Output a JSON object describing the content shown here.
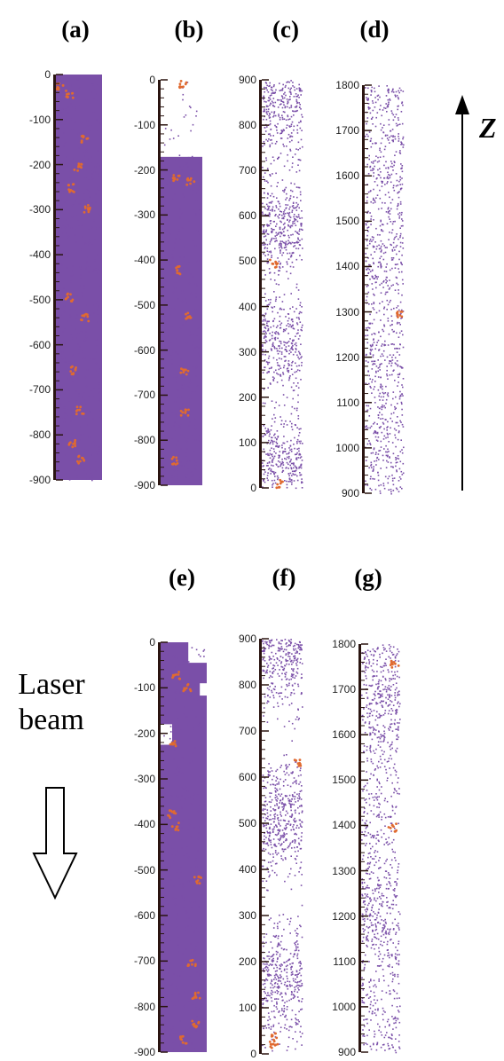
{
  "panels": [
    {
      "label": "(a)",
      "ticks": [
        "0",
        "-100",
        "-200",
        "-300",
        "-400",
        "-500",
        "-600",
        "-700",
        "-800",
        "-900"
      ],
      "density": "full",
      "clusters": [
        [
          0.03,
          0.08
        ],
        [
          0.05,
          0.3
        ],
        [
          0.16,
          0.65
        ],
        [
          0.23,
          0.5
        ],
        [
          0.28,
          0.35
        ],
        [
          0.33,
          0.7
        ],
        [
          0.55,
          0.3
        ],
        [
          0.6,
          0.65
        ],
        [
          0.73,
          0.4
        ],
        [
          0.83,
          0.55
        ],
        [
          0.91,
          0.35
        ],
        [
          0.95,
          0.55
        ]
      ]
    },
    {
      "label": "(b)",
      "ticks": [
        "0",
        "-100",
        "-200",
        "-300",
        "-400",
        "-500",
        "-600",
        "-700",
        "-800",
        "-900"
      ],
      "density": "gapTop",
      "clusters": [
        [
          0.01,
          0.55
        ],
        [
          0.24,
          0.4
        ],
        [
          0.25,
          0.75
        ],
        [
          0.47,
          0.45
        ],
        [
          0.58,
          0.7
        ],
        [
          0.72,
          0.6
        ],
        [
          0.82,
          0.6
        ],
        [
          0.94,
          0.35
        ]
      ]
    },
    {
      "label": "(c)",
      "ticks": [
        "900",
        "800",
        "700",
        "600",
        "500",
        "400",
        "300",
        "200",
        "100",
        "0"
      ],
      "density": "patchy",
      "clusters": [
        [
          0.45,
          0.3
        ],
        [
          0.99,
          0.45
        ]
      ]
    },
    {
      "label": "(d)",
      "ticks": [
        "1800",
        "1700",
        "1600",
        "1500",
        "1400",
        "1300",
        "1200",
        "1100",
        "1000",
        "900"
      ],
      "density": "sparse",
      "clusters": [
        [
          0.56,
          0.95
        ]
      ]
    },
    {
      "label": "(e)",
      "ticks": [
        "0",
        "-100",
        "-200",
        "-300",
        "-400",
        "-500",
        "-600",
        "-700",
        "-800",
        "-900"
      ],
      "density": "gapTop2",
      "clusters": [
        [
          0.08,
          0.35
        ],
        [
          0.11,
          0.6
        ],
        [
          0.25,
          0.3
        ],
        [
          0.42,
          0.25
        ],
        [
          0.45,
          0.35
        ],
        [
          0.58,
          0.85
        ],
        [
          0.78,
          0.7
        ],
        [
          0.86,
          0.8
        ],
        [
          0.93,
          0.8
        ],
        [
          0.97,
          0.5
        ]
      ]
    },
    {
      "label": "(f)",
      "ticks": [
        "900",
        "800",
        "700",
        "600",
        "500",
        "400",
        "300",
        "200",
        "100",
        "0"
      ],
      "density": "patchy2",
      "clusters": [
        [
          0.3,
          0.9
        ],
        [
          0.96,
          0.3
        ],
        [
          0.98,
          0.3
        ]
      ]
    },
    {
      "label": "(g)",
      "ticks": [
        "1800",
        "1700",
        "1600",
        "1500",
        "1400",
        "1300",
        "1200",
        "1100",
        "1000",
        "900"
      ],
      "density": "sparse2",
      "clusters": [
        [
          0.05,
          0.88
        ],
        [
          0.45,
          0.82
        ]
      ]
    }
  ],
  "axis_label": "Z",
  "laser_text": [
    "Laser",
    "beam"
  ],
  "colors": {
    "particles": "#7a4fa8",
    "clusters": "#e06a30",
    "axis": "#2a1410"
  }
}
